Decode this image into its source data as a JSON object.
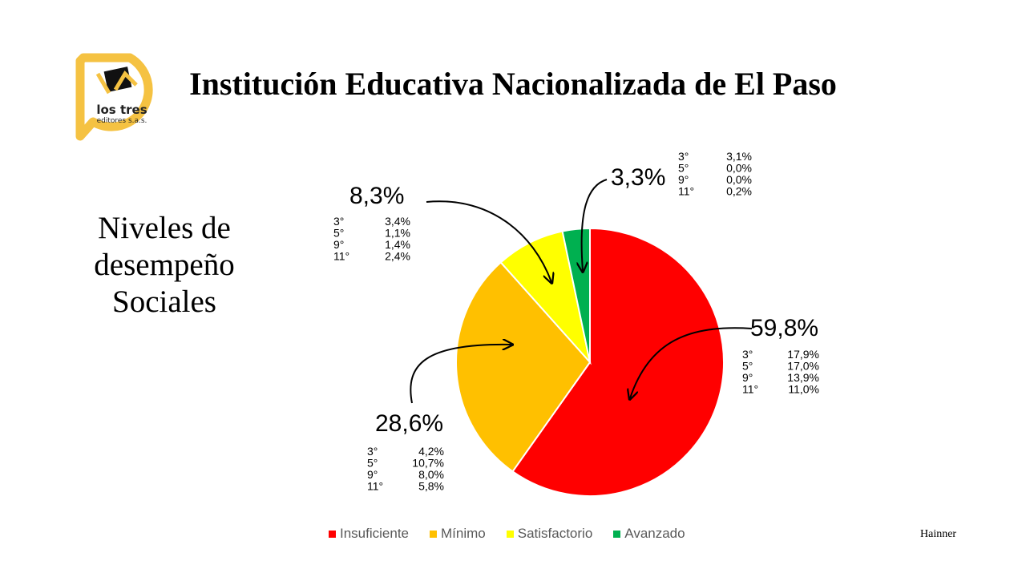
{
  "slide": {
    "title": "Institución Educativa Nacionalizada de El Paso",
    "subtitle_lines": [
      "Niveles de",
      "desempeño",
      "Sociales"
    ],
    "logo": {
      "line1": "los tres",
      "line2": "editores s.a.s."
    },
    "footer": "Hainner"
  },
  "colors": {
    "Insuficiente": "#ff0000",
    "Mínimo": "#ffc000",
    "Satisfactorio": "#ffff00",
    "Avanzado": "#00b050",
    "logo": "#f5c242"
  },
  "chart_data": {
    "type": "pie",
    "categories": [
      "Insuficiente",
      "Mínimo",
      "Satisfactorio",
      "Avanzado"
    ],
    "values": [
      59.8,
      28.6,
      8.3,
      3.3
    ],
    "labels": [
      "59,8%",
      "28,6%",
      "8,3%",
      "3,3%"
    ],
    "legend": "bottom",
    "annotations": [
      {
        "category": "Insuficiente",
        "total": "59,8%",
        "breakdown": [
          {
            "grade": "3°",
            "value": "17,9%"
          },
          {
            "grade": "5°",
            "value": "17,0%"
          },
          {
            "grade": "9°",
            "value": "13,9%"
          },
          {
            "grade": "11°",
            "value": "11,0%"
          }
        ]
      },
      {
        "category": "Mínimo",
        "total": "28,6%",
        "breakdown": [
          {
            "grade": "3°",
            "value": "4,2%"
          },
          {
            "grade": "5°",
            "value": "10,7%"
          },
          {
            "grade": "9°",
            "value": "8,0%"
          },
          {
            "grade": "11°",
            "value": "5,8%"
          }
        ]
      },
      {
        "category": "Satisfactorio",
        "total": "8,3%",
        "breakdown": [
          {
            "grade": "3°",
            "value": "3,4%"
          },
          {
            "grade": "5°",
            "value": "1,1%"
          },
          {
            "grade": "9°",
            "value": "1,4%"
          },
          {
            "grade": "11°",
            "value": "2,4%"
          }
        ]
      },
      {
        "category": "Avanzado",
        "total": "3,3%",
        "breakdown": [
          {
            "grade": "3°",
            "value": "3,1%"
          },
          {
            "grade": "5°",
            "value": "0,0%"
          },
          {
            "grade": "9°",
            "value": "0,0%"
          },
          {
            "grade": "11°",
            "value": "0,2%"
          }
        ]
      }
    ]
  }
}
